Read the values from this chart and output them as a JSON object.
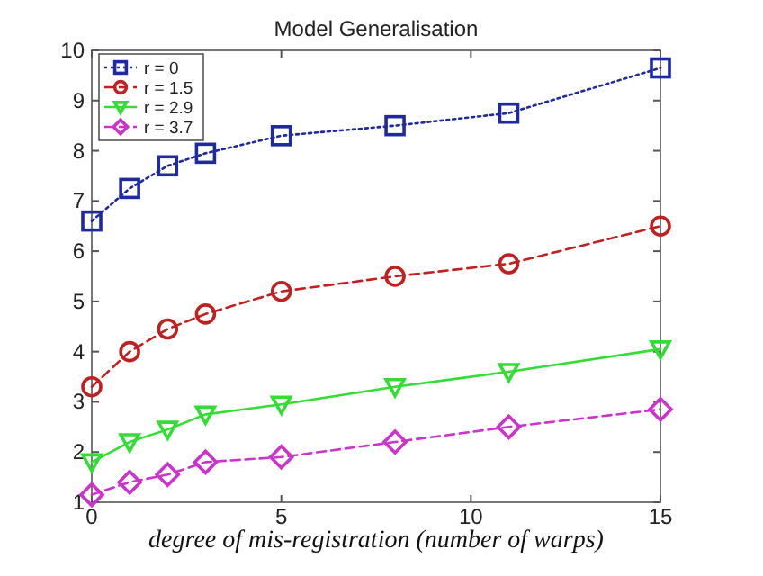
{
  "chart_data": {
    "type": "line",
    "title": "Model Generalisation",
    "xlabel": "degree of mis-registration (number of warps)",
    "x": [
      0,
      1,
      2,
      3,
      5,
      8,
      11,
      15
    ],
    "series": [
      {
        "name": "r = 0",
        "color": "#1f2a9e",
        "marker": "square",
        "line_style": "dotted",
        "values": [
          6.6,
          7.25,
          7.7,
          7.95,
          8.3,
          8.5,
          8.75,
          9.65
        ]
      },
      {
        "name": "r = 1.5",
        "color": "#c02020",
        "marker": "circle",
        "line_style": "dashed",
        "values": [
          3.3,
          4.0,
          4.45,
          4.75,
          5.2,
          5.5,
          5.75,
          6.5
        ]
      },
      {
        "name": "r = 2.9",
        "color": "#33dd33",
        "marker": "triangle",
        "line_style": "solid",
        "values": [
          1.8,
          2.2,
          2.45,
          2.75,
          2.95,
          3.3,
          3.6,
          4.05
        ]
      },
      {
        "name": "r = 3.7",
        "color": "#cc33cc",
        "marker": "diamond",
        "line_style": "dashed",
        "values": [
          1.15,
          1.4,
          1.55,
          1.8,
          1.9,
          2.2,
          2.5,
          2.85
        ]
      }
    ],
    "xlim": [
      0,
      15
    ],
    "xticks": [
      0,
      5,
      10,
      15
    ],
    "ylim": [
      1,
      10
    ],
    "yticks": [
      1,
      2,
      3,
      4,
      5,
      6,
      7,
      8,
      9,
      10
    ],
    "grid": false,
    "legend": "top left"
  }
}
